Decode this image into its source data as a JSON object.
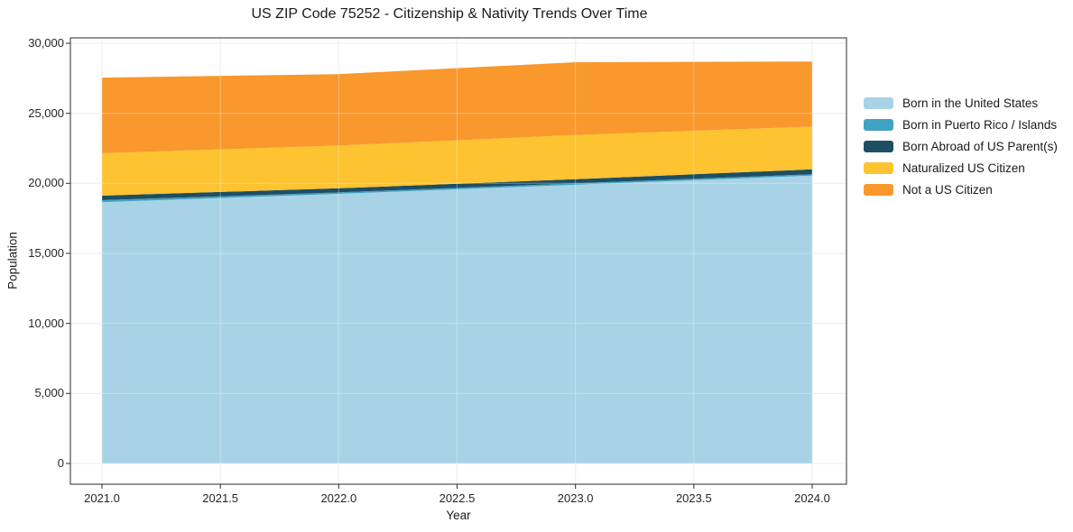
{
  "chart_data": {
    "type": "area",
    "stacked": true,
    "title": "US ZIP Code 75252 - Citizenship & Nativity Trends Over Time",
    "xlabel": "Year",
    "ylabel": "Population",
    "x": [
      2021,
      2022,
      2023,
      2024
    ],
    "series": [
      {
        "name": "Born in the United States",
        "color": "#a8d3e6",
        "values": [
          18650,
          19250,
          19900,
          20550
        ]
      },
      {
        "name": "Born in Puerto Rico / Islands",
        "color": "#41a3c4",
        "values": [
          150,
          100,
          100,
          100
        ]
      },
      {
        "name": "Born Abroad of US Parent(s)",
        "color": "#1f4e63",
        "values": [
          320,
          300,
          300,
          350
        ]
      },
      {
        "name": "Naturalized US Citizen",
        "color": "#fdc330",
        "values": [
          3030,
          3050,
          3150,
          3050
        ]
      },
      {
        "name": "Not a US Citizen",
        "color": "#f8982d",
        "values": [
          5400,
          5100,
          5200,
          4650
        ]
      }
    ],
    "stacked_totals": [
      27550,
      27800,
      28650,
      28700
    ],
    "xticks": [
      2021.0,
      2021.5,
      2022.0,
      2022.5,
      2023.0,
      2023.5,
      2024.0
    ],
    "xtick_labels": [
      "2021.0",
      "2021.5",
      "2022.0",
      "2022.5",
      "2023.0",
      "2023.5",
      "2024.0"
    ],
    "yticks": [
      0,
      5000,
      10000,
      15000,
      20000,
      25000,
      30000
    ],
    "ytick_labels": [
      "0",
      "5,000",
      "10,000",
      "15,000",
      "20,000",
      "25,000",
      "30,000"
    ],
    "ylim": [
      0,
      30000
    ],
    "xlim": [
      2020.87,
      2024.15
    ],
    "grid": true,
    "legend_position": "right"
  }
}
